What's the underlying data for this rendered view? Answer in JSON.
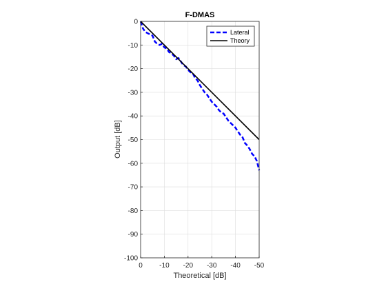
{
  "chart_data": {
    "type": "line",
    "title": "F-DMAS",
    "xlabel": "Theoretical [dB]",
    "ylabel": "Output [dB]",
    "xlim": [
      0,
      -50
    ],
    "ylim": [
      -100,
      0
    ],
    "x_reversed": true,
    "grid": true,
    "legend_position": "top-right",
    "xticks": [
      0,
      -10,
      -20,
      -30,
      -40,
      -50
    ],
    "yticks": [
      0,
      -10,
      -20,
      -30,
      -40,
      -50,
      -60,
      -70,
      -80,
      -90,
      -100
    ],
    "series": [
      {
        "name": "Lateral",
        "style": "dashed",
        "color": "#0000ff",
        "x": [
          0,
          -1,
          -2,
          -3,
          -4,
          -5,
          -6,
          -7,
          -8,
          -9,
          -10,
          -11,
          -12,
          -13,
          -14,
          -15,
          -16,
          -17,
          -18,
          -19,
          -20,
          -21,
          -22,
          -23,
          -24,
          -25,
          -26,
          -27,
          -28,
          -29,
          -30,
          -31,
          -32,
          -33,
          -34,
          -35,
          -36,
          -37,
          -38,
          -39,
          -40,
          -41,
          -42,
          -43,
          -44,
          -45,
          -46,
          -47,
          -48,
          -49,
          -50
        ],
        "y": [
          0,
          -3,
          -4.5,
          -5,
          -5.5,
          -6,
          -8.5,
          -9.5,
          -10,
          -9.5,
          -11,
          -11.5,
          -13,
          -13.5,
          -14.5,
          -16,
          -15.5,
          -17,
          -18.5,
          -19,
          -20.5,
          -21.5,
          -22,
          -24,
          -25,
          -27,
          -28.5,
          -30,
          -31,
          -32.5,
          -34,
          -35,
          -36,
          -37.5,
          -38.5,
          -39,
          -40.5,
          -42,
          -43,
          -44,
          -45,
          -46.5,
          -48,
          -49,
          -51.5,
          -52.5,
          -54,
          -56,
          -57,
          -59,
          -63
        ]
      },
      {
        "name": "Theory",
        "style": "solid",
        "color": "#000000",
        "x": [
          0,
          -50
        ],
        "y": [
          0,
          -50
        ]
      }
    ]
  }
}
